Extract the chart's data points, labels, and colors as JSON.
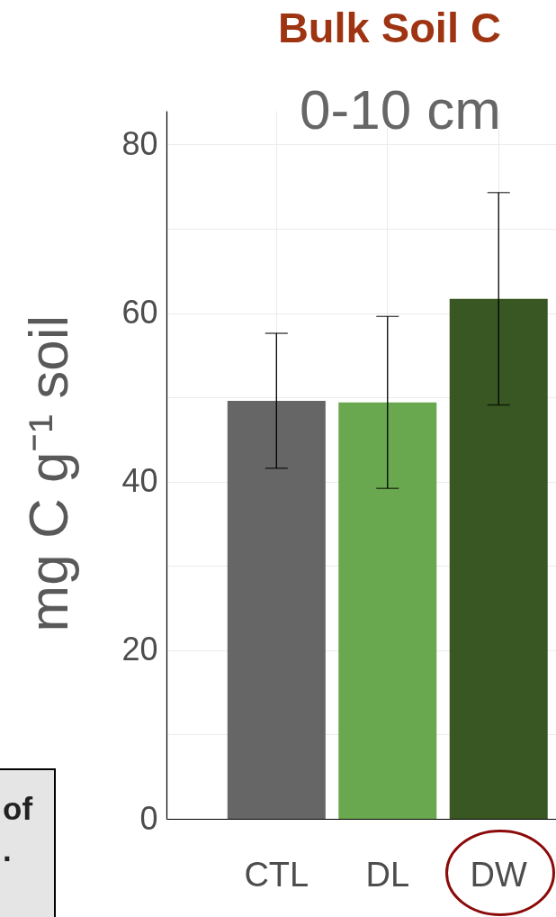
{
  "chart_data": {
    "type": "bar",
    "title": "Bulk Soil C",
    "subtitle": "0-10 cm",
    "ylabel": "mg C g⁻¹ soil",
    "categories": [
      "CTL",
      "DL",
      "DW"
    ],
    "values": [
      49.6,
      49.4,
      61.7
    ],
    "errors": [
      8.0,
      10.2,
      12.6
    ],
    "colors": [
      "#666666",
      "#6aa84f",
      "#385723"
    ],
    "ylim": [
      0,
      84
    ],
    "yticks": [
      0,
      {
        "value": 10,
        "label": null
      },
      20,
      {
        "value": 30,
        "label": null
      },
      40,
      {
        "value": 50,
        "label": null
      },
      60,
      {
        "value": 70,
        "label": null
      },
      80
    ],
    "grid": true,
    "annotations": [
      "of",
      "."
    ]
  }
}
